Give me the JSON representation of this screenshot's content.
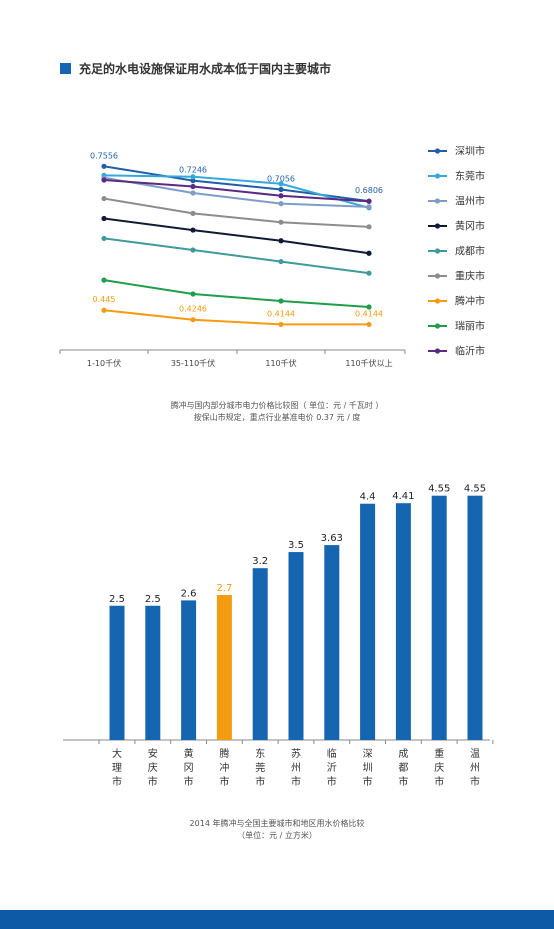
{
  "header": {
    "title": "充足的水电设施保证用水成本低于国内主要城市"
  },
  "colors": {
    "accent": "#1565b0",
    "highlight": "#f39c12",
    "axis": "#888888",
    "footer": "#0e5aa7"
  },
  "caption1": {
    "line1": "腾冲与国内部分城市电力价格比较图（ 单位：元 / 千瓦时 ）",
    "line2": "按保山市规定，重点行业基准电价 0.37 元 / 度"
  },
  "caption2": {
    "line1": "2014 年腾冲与全国主要城市和地区用水价格比较",
    "line2": "（单位：元 / 立方米）"
  },
  "chart_data": [
    {
      "type": "line",
      "categories": [
        "1-10千伏",
        "35-110千伏",
        "110千伏",
        "110千伏以上"
      ],
      "series": [
        {
          "name": "深圳市",
          "color": "#1f5fa8",
          "values": [
            0.7556,
            0.7246,
            0.7056,
            0.6806
          ],
          "labels": [
            "0.7556",
            "0.7246",
            "0.7056",
            "0.6806"
          ]
        },
        {
          "name": "东莞市",
          "color": "#32a8dc",
          "values": [
            0.736,
            0.733,
            0.718,
            0.666
          ],
          "labels": []
        },
        {
          "name": "温州市",
          "color": "#7f9cc9",
          "values": [
            0.731,
            0.698,
            0.675,
            0.668
          ],
          "labels": []
        },
        {
          "name": "黄冈市",
          "color": "#111a33",
          "values": [
            0.643,
            0.618,
            0.595,
            0.568
          ],
          "labels": []
        },
        {
          "name": "成都市",
          "color": "#3f9a9a",
          "values": [
            0.6,
            0.575,
            0.55,
            0.525
          ],
          "labels": []
        },
        {
          "name": "重庆市",
          "color": "#8d8d8d",
          "values": [
            0.686,
            0.654,
            0.635,
            0.625
          ],
          "labels": []
        },
        {
          "name": "腾冲市",
          "color": "#f39c12",
          "values": [
            0.445,
            0.4246,
            0.4144,
            0.4144
          ],
          "labels": [
            "0.445",
            "0.4246",
            "0.4144",
            "0.4144"
          ]
        },
        {
          "name": "瑞丽市",
          "color": "#1f9e4a",
          "values": [
            0.51,
            0.48,
            0.465,
            0.452
          ],
          "labels": []
        },
        {
          "name": "临沂市",
          "color": "#5b2a82",
          "values": [
            0.726,
            0.712,
            0.692,
            0.68
          ],
          "labels": []
        }
      ],
      "ylim": [
        0.37,
        0.78
      ],
      "legend": "right"
    },
    {
      "type": "bar",
      "categories": [
        "大理市",
        "安庆市",
        "黄冈市",
        "腾冲市",
        "东莞市",
        "苏州市",
        "临沂市",
        "深圳市",
        "成都市",
        "重庆市",
        "温州市"
      ],
      "values": [
        2.5,
        2.5,
        2.6,
        2.7,
        3.2,
        3.5,
        3.63,
        4.4,
        4.41,
        4.55,
        4.55
      ],
      "labels": [
        "2.5",
        "2.5",
        "2.6",
        "2.7",
        "3.2",
        "3.5",
        "3.63",
        "4.4",
        "4.41",
        "4.55",
        "4.55"
      ],
      "highlight_index": 3,
      "ylim": [
        0,
        4.6
      ]
    }
  ]
}
